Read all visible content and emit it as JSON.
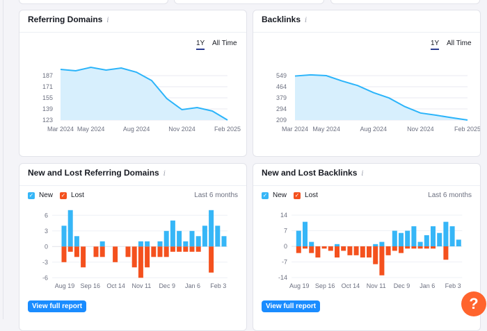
{
  "colors": {
    "line": "#2bb4fa",
    "area": "#d7effd",
    "new": "#36b6f7",
    "lost": "#f4511e",
    "accent": "#1a8cff",
    "help": "#ff642d"
  },
  "referring_domains": {
    "title": "Referring Domains",
    "range_active": "1Y",
    "range_other": "All Time"
  },
  "backlinks": {
    "title": "Backlinks",
    "range_active": "1Y",
    "range_other": "All Time"
  },
  "new_lost_domains": {
    "title": "New and Lost Referring Domains",
    "legend_new": "New",
    "legend_lost": "Lost",
    "period": "Last 6 months",
    "button": "View full report"
  },
  "new_lost_backlinks": {
    "title": "New and Lost Backlinks",
    "legend_new": "New",
    "legend_lost": "Lost",
    "period": "Last 6 months",
    "button": "View full report"
  },
  "help": {
    "label": "?"
  },
  "chart_data": [
    {
      "type": "area",
      "title": "Referring Domains",
      "x": [
        "Mar 2024",
        "Apr 2024",
        "May 2024",
        "Jun 2024",
        "Jul 2024",
        "Aug 2024",
        "Sep 2024",
        "Oct 2024",
        "Nov 2024",
        "Dec 2024",
        "Jan 2025",
        "Feb 2025"
      ],
      "values": [
        196,
        194,
        199,
        195,
        198,
        192,
        180,
        154,
        138,
        141,
        136,
        123
      ],
      "xticks": [
        "Mar 2024",
        "May 2024",
        "Aug 2024",
        "Nov 2024",
        "Feb 2025"
      ],
      "yticks": [
        123,
        139,
        155,
        171,
        187
      ],
      "ylim": [
        123,
        200
      ],
      "grid": true
    },
    {
      "type": "area",
      "title": "Backlinks",
      "x": [
        "Mar 2024",
        "Apr 2024",
        "May 2024",
        "Jun 2024",
        "Jul 2024",
        "Aug 2024",
        "Sep 2024",
        "Oct 2024",
        "Nov 2024",
        "Dec 2024",
        "Jan 2025",
        "Feb 2025"
      ],
      "values": [
        546,
        555,
        549,
        508,
        473,
        419,
        378,
        312,
        263,
        246,
        227,
        209
      ],
      "xticks": [
        "Mar 2024",
        "May 2024",
        "Aug 2024",
        "Nov 2024",
        "Feb 2025"
      ],
      "yticks": [
        209,
        294,
        379,
        464,
        549
      ],
      "ylim": [
        209,
        560
      ],
      "grid": true
    },
    {
      "type": "bar",
      "title": "New and Lost Referring Domains",
      "xticks": [
        "Aug 19",
        "Sep 16",
        "Oct 14",
        "Nov 11",
        "Dec 9",
        "Jan 6",
        "Feb 3"
      ],
      "yticks": [
        6,
        3,
        0,
        -3,
        -6
      ],
      "ylim": [
        -6,
        7
      ],
      "series": [
        {
          "name": "New",
          "values": [
            4,
            7,
            2,
            0,
            0,
            0,
            1,
            0,
            0,
            0,
            0,
            0,
            1,
            1,
            0,
            1,
            3,
            5,
            3,
            1,
            3,
            2,
            4,
            7,
            4,
            2
          ]
        },
        {
          "name": "Lost",
          "values": [
            -3,
            -1,
            -2,
            -4,
            0,
            -2,
            -2,
            0,
            -3,
            0,
            -2,
            -4,
            -6,
            -4,
            -2,
            -2,
            -2,
            -1,
            -1,
            -1,
            -1,
            -1,
            0,
            -5,
            0,
            0
          ]
        }
      ]
    },
    {
      "type": "bar",
      "title": "New and Lost Backlinks",
      "xticks": [
        "Aug 19",
        "Sep 16",
        "Oct 14",
        "Nov 11",
        "Dec 9",
        "Jan 6",
        "Feb 3"
      ],
      "yticks": [
        14,
        7,
        0,
        -7,
        -14
      ],
      "ylim": [
        -14,
        14
      ],
      "series": [
        {
          "name": "New",
          "values": [
            7,
            11,
            2,
            0,
            0,
            0,
            1,
            0,
            0,
            0,
            0,
            0,
            1,
            2,
            0,
            7,
            6,
            7,
            9,
            2,
            5,
            9,
            6,
            11,
            9,
            3
          ]
        },
        {
          "name": "Lost",
          "values": [
            -3,
            -1,
            -3,
            -5,
            -1,
            -2,
            -5,
            -2,
            -4,
            -4,
            -5,
            -5,
            -8,
            -13,
            -4,
            -2,
            -3,
            -1,
            -1,
            -1,
            -1,
            -1,
            0,
            -6,
            0,
            0
          ]
        }
      ]
    }
  ]
}
